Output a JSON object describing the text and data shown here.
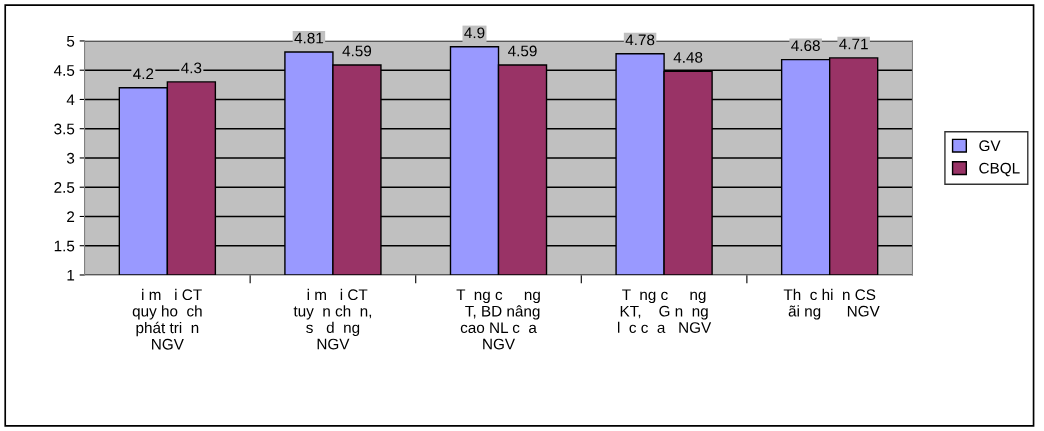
{
  "chart_data": {
    "type": "bar",
    "categories": [
      "  i m   i CT\nquy ho  ch\nphát tri  n\nNGV",
      "  i m   i CT\ntuy  n ch  n,\ns   d  ng\nNGV",
      "T  ng c     ng\n  T, BD nâng\ncao NL c  a\nNGV",
      "T  ng c     ng\nKT,    G n  ng\nl  c c  a   NGV",
      "Th  c hi  n CS\n  ãi ng      NGV"
    ],
    "series": [
      {
        "name": "GV",
        "color": "#9999ff",
        "values": [
          4.2,
          4.81,
          4.9,
          4.78,
          4.68
        ]
      },
      {
        "name": "CBQL",
        "color": "#993366",
        "values": [
          4.3,
          4.59,
          4.59,
          4.48,
          4.71
        ]
      }
    ],
    "ylim": [
      1,
      5
    ],
    "yticks": [
      1,
      1.5,
      2,
      2.5,
      3,
      3.5,
      4,
      4.5,
      5
    ],
    "grid": "y",
    "legend": "right",
    "data_labels": true
  }
}
